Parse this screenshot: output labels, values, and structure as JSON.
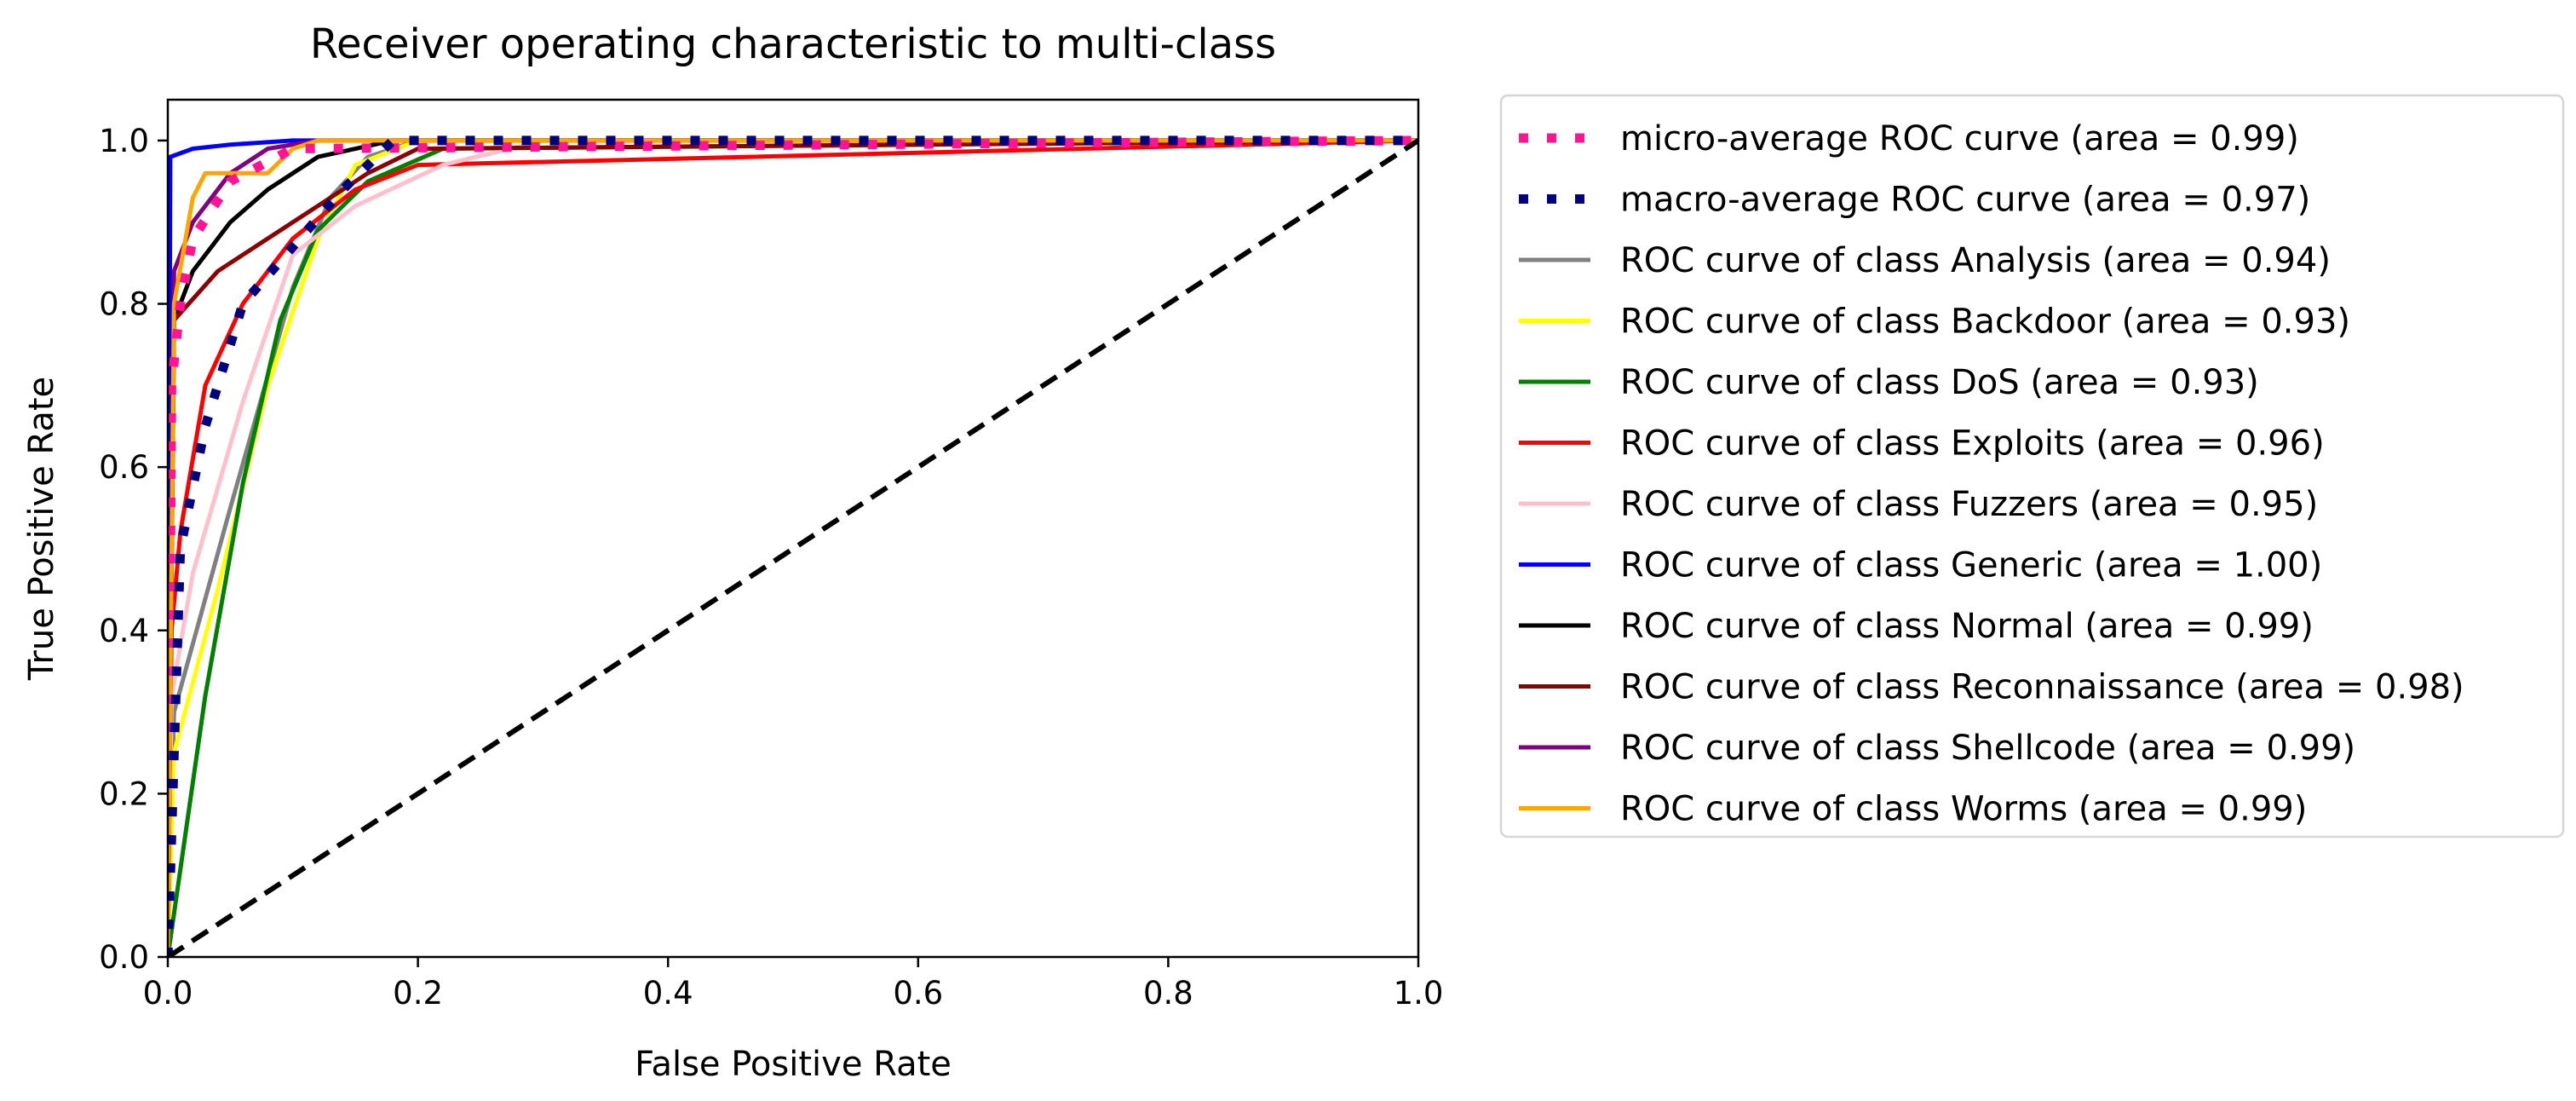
{
  "chart_data": {
    "type": "line",
    "title": "Receiver operating characteristic to multi-class",
    "xlabel": "False Positive Rate",
    "ylabel": "True Positive Rate",
    "xlim": [
      0.0,
      1.0
    ],
    "ylim": [
      0.0,
      1.05
    ],
    "xticks": [
      "0.0",
      "0.2",
      "0.4",
      "0.6",
      "0.8",
      "1.0"
    ],
    "yticks": [
      "0.0",
      "0.2",
      "0.4",
      "0.6",
      "0.8",
      "1.0"
    ],
    "grid": false,
    "legend_position": "outside-right",
    "series": [
      {
        "name": "micro-average",
        "legend": "micro-average ROC curve (area = 0.99)",
        "color": "#ff1493",
        "style": "dotted",
        "x": [
          0,
          0.003,
          0.01,
          0.02,
          0.05,
          0.1,
          1.0
        ],
        "y": [
          0,
          0.7,
          0.8,
          0.88,
          0.95,
          0.99,
          1.0
        ]
      },
      {
        "name": "macro-average",
        "legend": "macro-average ROC curve (area = 0.97)",
        "color": "#000080",
        "style": "dotted",
        "x": [
          0,
          0.01,
          0.03,
          0.06,
          0.1,
          0.14,
          0.18,
          1.0
        ],
        "y": [
          0,
          0.5,
          0.65,
          0.8,
          0.87,
          0.94,
          1.0,
          1.0
        ]
      },
      {
        "name": "Analysis",
        "legend": "ROC curve of class Analysis (area = 0.94)",
        "color": "#808080",
        "style": "solid",
        "x": [
          0,
          0.005,
          0.05,
          0.1,
          0.13,
          0.16,
          0.2,
          1.0
        ],
        "y": [
          0,
          0.3,
          0.55,
          0.82,
          0.93,
          0.98,
          1.0,
          1.0
        ]
      },
      {
        "name": "Backdoor",
        "legend": "ROC curve of class Backdoor (area = 0.93)",
        "color": "#ffff00",
        "style": "solid",
        "x": [
          0,
          0.005,
          0.04,
          0.08,
          0.12,
          0.15,
          0.2,
          1.0
        ],
        "y": [
          0,
          0.25,
          0.45,
          0.7,
          0.88,
          0.97,
          1.0,
          1.0
        ]
      },
      {
        "name": "DoS",
        "legend": "ROC curve of class DoS (area = 0.93)",
        "color": "#008000",
        "style": "solid",
        "x": [
          0,
          0.03,
          0.06,
          0.09,
          0.12,
          0.16,
          0.22,
          1.0
        ],
        "y": [
          0,
          0.32,
          0.58,
          0.78,
          0.89,
          0.95,
          0.99,
          1.0
        ]
      },
      {
        "name": "Exploits",
        "legend": "ROC curve of class Exploits (area = 0.96)",
        "color": "#ff0000",
        "style": "solid",
        "x": [
          0,
          0.003,
          0.01,
          0.03,
          0.06,
          0.1,
          0.15,
          0.2,
          1.0
        ],
        "y": [
          0,
          0.4,
          0.52,
          0.7,
          0.8,
          0.88,
          0.94,
          0.97,
          1.0
        ]
      },
      {
        "name": "Fuzzers",
        "legend": "ROC curve of class Fuzzers (area = 0.95)",
        "color": "#ffc0cb",
        "style": "solid",
        "x": [
          0,
          0.003,
          0.02,
          0.06,
          0.1,
          0.15,
          0.22,
          0.3,
          1.0
        ],
        "y": [
          0,
          0.32,
          0.47,
          0.68,
          0.86,
          0.92,
          0.97,
          1.0,
          1.0
        ]
      },
      {
        "name": "Generic",
        "legend": "ROC curve of class Generic (area = 1.00)",
        "color": "#0000ff",
        "style": "solid",
        "x": [
          0,
          0.002,
          0.02,
          0.05,
          0.1,
          1.0
        ],
        "y": [
          0,
          0.98,
          0.99,
          0.995,
          1.0,
          1.0
        ]
      },
      {
        "name": "Normal",
        "legend": "ROC curve of class Normal (area = 0.99)",
        "color": "#000000",
        "style": "solid",
        "x": [
          0,
          0.005,
          0.02,
          0.05,
          0.08,
          0.12,
          0.18,
          1.0
        ],
        "y": [
          0,
          0.78,
          0.84,
          0.9,
          0.94,
          0.98,
          1.0,
          1.0
        ]
      },
      {
        "name": "Reconnaissance",
        "legend": "ROC curve of class Reconnaissance (area = 0.98)",
        "color": "#8b0000",
        "style": "solid",
        "x": [
          0,
          0.005,
          0.04,
          0.08,
          0.12,
          0.16,
          0.2,
          1.0
        ],
        "y": [
          0,
          0.78,
          0.84,
          0.88,
          0.92,
          0.96,
          0.99,
          1.0
        ]
      },
      {
        "name": "Shellcode",
        "legend": "ROC curve of class Shellcode (area = 0.99)",
        "color": "#800080",
        "style": "solid",
        "x": [
          0,
          0.005,
          0.02,
          0.05,
          0.08,
          0.12,
          1.0
        ],
        "y": [
          0,
          0.84,
          0.9,
          0.96,
          0.99,
          1.0,
          1.0
        ]
      },
      {
        "name": "Worms",
        "legend": "ROC curve of class Worms (area = 0.99)",
        "color": "#ffa500",
        "style": "solid",
        "x": [
          0,
          0.005,
          0.02,
          0.03,
          0.08,
          0.1,
          0.12,
          1.0
        ],
        "y": [
          0,
          0.8,
          0.93,
          0.96,
          0.96,
          0.99,
          1.0,
          1.0
        ]
      },
      {
        "name": "chance",
        "legend": "",
        "color": "#000000",
        "style": "dashed",
        "x": [
          0,
          1
        ],
        "y": [
          0,
          1
        ]
      }
    ]
  }
}
